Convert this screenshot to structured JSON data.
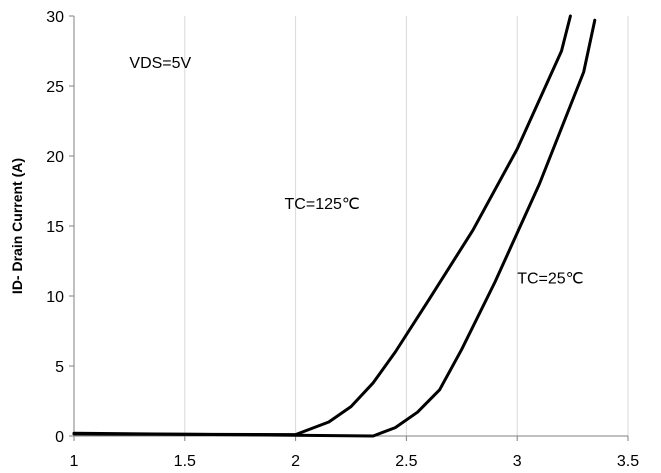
{
  "chart_data": {
    "type": "line",
    "title": "",
    "xlabel": "",
    "ylabel": "ID- Drain Current  (A)",
    "xlim": [
      1,
      3.5
    ],
    "ylim": [
      0,
      30
    ],
    "xticks": [
      "1",
      "1.5",
      "2",
      "2.5",
      "3",
      "3.5"
    ],
    "yticks": [
      "0",
      "5",
      "10",
      "15",
      "20",
      "25",
      "30"
    ],
    "grid": "vertical",
    "legend": "none",
    "line_color": "#000000",
    "grid_color": "#d9d9d9",
    "series": [
      {
        "label_ref": "tc125",
        "points": [
          [
            1.0,
            0.15
          ],
          [
            2.0,
            0.1
          ],
          [
            2.05,
            0.4
          ],
          [
            2.15,
            1.0
          ],
          [
            2.25,
            2.1
          ],
          [
            2.35,
            3.8
          ],
          [
            2.45,
            6.0
          ],
          [
            2.6,
            9.7
          ],
          [
            2.8,
            14.7
          ],
          [
            3.0,
            20.5
          ],
          [
            3.2,
            27.5
          ],
          [
            3.24,
            30.0
          ]
        ]
      },
      {
        "label_ref": "tc25",
        "points": [
          [
            1.0,
            0.2
          ],
          [
            2.35,
            0.0
          ],
          [
            2.45,
            0.6
          ],
          [
            2.55,
            1.7
          ],
          [
            2.65,
            3.3
          ],
          [
            2.75,
            6.2
          ],
          [
            2.9,
            11.0
          ],
          [
            3.1,
            18.0
          ],
          [
            3.3,
            26.0
          ],
          [
            3.35,
            29.7
          ]
        ]
      }
    ],
    "annotations": {
      "vds": {
        "text": "VDS=5V",
        "x": 1.25,
        "y": 26.3
      },
      "tc125": {
        "text": "TC=125℃",
        "x": 1.95,
        "y": 16.2
      },
      "tc25": {
        "text": "TC=25℃",
        "x": 3.0,
        "y": 10.9
      }
    }
  }
}
